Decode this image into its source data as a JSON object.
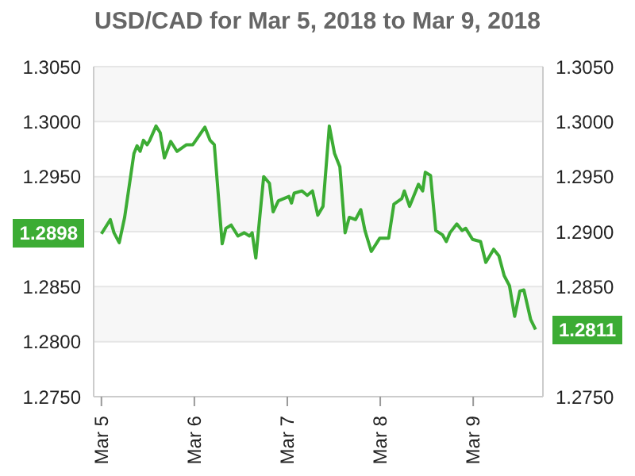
{
  "chart_data": {
    "type": "line",
    "title": "USD/CAD for Mar 5, 2018 to Mar 9, 2018",
    "x": [
      "2018-03-05T00:00",
      "2018-03-05T02:18",
      "2018-03-05T03:15",
      "2018-03-05T04:36",
      "2018-03-05T06:00",
      "2018-03-05T08:24",
      "2018-03-05T09:12",
      "2018-03-05T10:00",
      "2018-03-05T10:51",
      "2018-03-05T11:48",
      "2018-03-05T12:29",
      "2018-03-05T14:06",
      "2018-03-05T15:11",
      "2018-03-05T16:16",
      "2018-03-05T17:54",
      "2018-03-05T19:31",
      "2018-03-05T21:58",
      "2018-03-05T23:36",
      "2018-03-06T00:24",
      "2018-03-06T02:43",
      "2018-03-06T04:04",
      "2018-03-06T05:09",
      "2018-03-06T07:11",
      "2018-03-06T08:08",
      "2018-03-06T09:30",
      "2018-03-06T11:15",
      "2018-03-06T12:53",
      "2018-03-06T14:14",
      "2018-03-06T14:55",
      "2018-03-06T15:52",
      "2018-03-06T17:54",
      "2018-03-06T19:23",
      "2018-03-06T20:20",
      "2018-03-06T21:42",
      "2018-03-07T00:25",
      "2018-03-07T01:05",
      "2018-03-07T01:46",
      "2018-03-07T03:48",
      "2018-03-07T05:09",
      "2018-03-07T06:30",
      "2018-03-07T07:52",
      "2018-03-07T09:13",
      "2018-03-07T10:51",
      "2018-03-07T12:12",
      "2018-03-07T13:34",
      "2018-03-07T14:55",
      "2018-03-07T16:00",
      "2018-03-07T17:37",
      "2018-03-07T18:58",
      "2018-03-07T20:03",
      "2018-03-07T21:41",
      "2018-03-07T23:51",
      "2018-03-08T02:10",
      "2018-03-08T03:31",
      "2018-03-08T05:33",
      "2018-03-08T06:13",
      "2018-03-08T07:34",
      "2018-03-08T09:52",
      "2018-03-08T10:57",
      "2018-03-08T11:38",
      "2018-03-08T12:59",
      "2018-03-08T14:20",
      "2018-03-08T16:06",
      "2018-03-08T17:03",
      "2018-03-08T18:00",
      "2018-03-08T19:46",
      "2018-03-08T21:07",
      "2018-03-08T22:04",
      "2018-03-08T23:50",
      "2018-03-09T01:54",
      "2018-03-09T03:15",
      "2018-03-09T05:17",
      "2018-03-09T06:38",
      "2018-03-09T08:00",
      "2018-03-09T09:21",
      "2018-03-09T10:42",
      "2018-03-09T12:03",
      "2018-03-09T13:05",
      "2018-03-09T14:51",
      "2018-03-09T16:06"
    ],
    "series": [
      {
        "color": "#3cac34",
        "values": [
          1.2898,
          1.2911,
          1.2899,
          1.289,
          1.2913,
          1.2971,
          1.2978,
          1.2973,
          1.2983,
          1.2979,
          1.2983,
          1.2996,
          1.299,
          1.2967,
          1.2982,
          1.2973,
          1.2979,
          1.2979,
          1.2983,
          1.2995,
          1.2983,
          1.2979,
          1.2889,
          1.2903,
          1.2906,
          1.2896,
          1.2899,
          1.2896,
          1.2899,
          1.2876,
          1.295,
          1.2944,
          1.2918,
          1.2928,
          1.2932,
          1.2926,
          1.2935,
          1.2937,
          1.2933,
          1.2937,
          1.2915,
          1.2923,
          1.2996,
          1.2971,
          1.2959,
          1.2899,
          1.2913,
          1.2911,
          1.292,
          1.2901,
          1.2882,
          1.2894,
          1.2894,
          1.2925,
          1.293,
          1.2937,
          1.2923,
          1.2943,
          1.2937,
          1.2954,
          1.2951,
          1.2901,
          1.2897,
          1.2891,
          1.2899,
          1.2907,
          1.2901,
          1.2903,
          1.2893,
          1.2891,
          1.2872,
          1.2884,
          1.2878,
          1.286,
          1.2851,
          1.2823,
          1.2846,
          1.2847,
          1.282,
          1.2811
        ]
      }
    ],
    "xlim": [
      "2018-03-04T22:00",
      "2018-03-09T18:00"
    ],
    "xticks": [
      {
        "value": "2018-03-05T00:00",
        "label": "Mar 5"
      },
      {
        "value": "2018-03-06T00:00",
        "label": "Mar 6"
      },
      {
        "value": "2018-03-07T00:00",
        "label": "Mar 7"
      },
      {
        "value": "2018-03-08T00:00",
        "label": "Mar 8"
      },
      {
        "value": "2018-03-09T00:00",
        "label": "Mar 9"
      }
    ],
    "ylim": [
      1.275,
      1.305
    ],
    "yticks": [
      {
        "value": 1.275,
        "label": "1.2750"
      },
      {
        "value": 1.28,
        "label": "1.2800"
      },
      {
        "value": 1.285,
        "label": "1.2850"
      },
      {
        "value": 1.295,
        "label": "1.2950"
      },
      {
        "value": 1.3,
        "label": "1.3000"
      },
      {
        "value": 1.305,
        "label": "1.3050"
      }
    ],
    "y2lim": [
      1.275,
      1.305
    ],
    "y2ticks": [
      {
        "value": 1.275,
        "label": "1.2750"
      },
      {
        "value": 1.28,
        "label": null
      },
      {
        "value": 1.285,
        "label": "1.2850"
      },
      {
        "value": 1.29,
        "label": "1.2900"
      },
      {
        "value": 1.295,
        "label": "1.2950"
      },
      {
        "value": 1.3,
        "label": "1.3000"
      },
      {
        "value": 1.305,
        "label": "1.3050"
      }
    ],
    "grid": "y",
    "annotations": [
      {
        "text": "1.2898",
        "x": "2018-03-05T00:00",
        "y": 1.2898
      },
      {
        "text": "1.2811",
        "x": "2018-03-09T16:06",
        "y": 1.2811
      }
    ]
  }
}
